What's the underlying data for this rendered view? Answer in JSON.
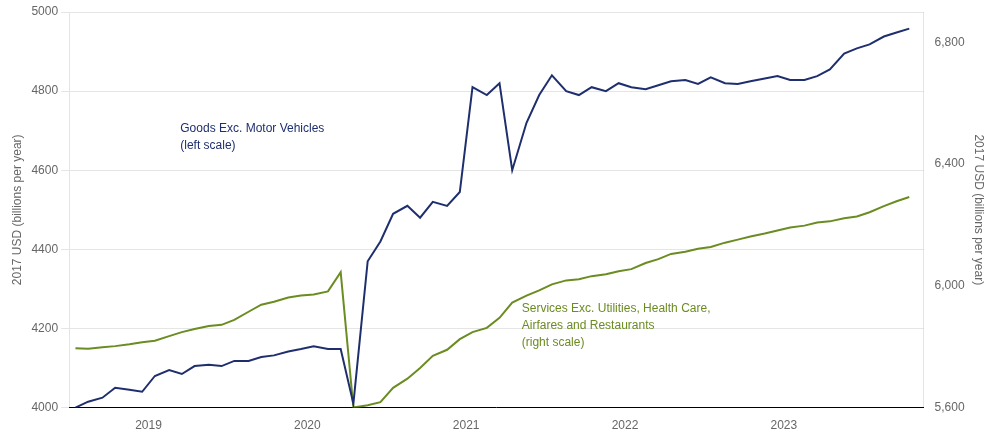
{
  "chart_data": {
    "type": "line",
    "ylabel": "2017 USD (billions per year)",
    "y2label": "2017 USD (billions per year)",
    "x": [
      2018.54,
      2018.62,
      2018.71,
      2018.79,
      2018.88,
      2018.96,
      2019.04,
      2019.13,
      2019.21,
      2019.29,
      2019.38,
      2019.46,
      2019.54,
      2019.63,
      2019.71,
      2019.79,
      2019.88,
      2019.96,
      2020.04,
      2020.13,
      2020.21,
      2020.29,
      2020.38,
      2020.46,
      2020.54,
      2020.63,
      2020.71,
      2020.79,
      2020.88,
      2020.96,
      2021.04,
      2021.13,
      2021.21,
      2021.29,
      2021.38,
      2021.46,
      2021.54,
      2021.63,
      2021.71,
      2021.79,
      2021.88,
      2021.96,
      2022.04,
      2022.13,
      2022.21,
      2022.29,
      2022.38,
      2022.46,
      2022.54,
      2022.63,
      2022.71,
      2022.79,
      2022.88,
      2022.96,
      2023.04,
      2023.13,
      2023.21,
      2023.29,
      2023.38,
      2023.46,
      2023.54,
      2023.63,
      2023.71,
      2023.79
    ],
    "series": [
      {
        "color": "#1f2f6e",
        "axis": "y",
        "values": [
          4000,
          4015,
          4025,
          4050,
          4045,
          4040,
          4080,
          4095,
          4085,
          4105,
          4108,
          4105,
          4118,
          4118,
          4128,
          4132,
          4142,
          4148,
          4155,
          4148,
          4148,
          4010,
          4370,
          4420,
          4490,
          4510,
          4480,
          4520,
          4510,
          4545,
          4810,
          4790,
          4820,
          4600,
          4720,
          4790,
          4840,
          4800,
          4790,
          4810,
          4800,
          4820,
          4810,
          4805,
          4815,
          4825,
          4828,
          4818,
          4835,
          4820,
          4818,
          4825,
          4832,
          4838,
          4828,
          4828,
          4838,
          4855,
          4895,
          4908,
          4918,
          4938,
          4948,
          4958
        ]
      },
      {
        "color": "#6b8c21",
        "axis": "y2",
        "values": [
          5795,
          5793,
          5798,
          5802,
          5808,
          5815,
          5820,
          5835,
          5848,
          5858,
          5868,
          5872,
          5888,
          5915,
          5938,
          5948,
          5962,
          5968,
          5972,
          5982,
          6045,
          5600,
          5608,
          5618,
          5665,
          5695,
          5730,
          5770,
          5790,
          5825,
          5848,
          5862,
          5895,
          5945,
          5968,
          5985,
          6005,
          6018,
          6022,
          6032,
          6038,
          6048,
          6055,
          6075,
          6088,
          6105,
          6112,
          6122,
          6128,
          6142,
          6152,
          6162,
          6172,
          6182,
          6192,
          6198,
          6208,
          6212,
          6222,
          6228,
          6242,
          6262,
          6278,
          6292
        ]
      }
    ],
    "xlim": [
      2018.5,
      2023.88
    ],
    "xticks": [
      2019,
      2020,
      2021,
      2022,
      2023
    ],
    "ylim": [
      4000,
      5000
    ],
    "yticks": [
      4000,
      4200,
      4400,
      4600,
      4800,
      5000
    ],
    "y2lim": [
      5600,
      6900
    ],
    "y2ticks": [
      {
        "value": 5600,
        "label": "5,600"
      },
      {
        "value": 6000,
        "label": "6,000"
      },
      {
        "value": 6400,
        "label": "6,400"
      },
      {
        "value": 6800,
        "label": "6,800"
      }
    ],
    "grid": true,
    "annotations": [
      {
        "text": "Goods Exc. Motor Vehicles\n(left scale)",
        "x": 2019.2,
        "y": 4720,
        "axis": "y",
        "color": "#1f2f6e"
      },
      {
        "text": "Services Exc. Utilities, Health Care,\nAirfares and Restaurants\n(right scale)",
        "x": 2021.35,
        "y": 5945,
        "axis": "y2",
        "color": "#6b8c21"
      }
    ]
  }
}
